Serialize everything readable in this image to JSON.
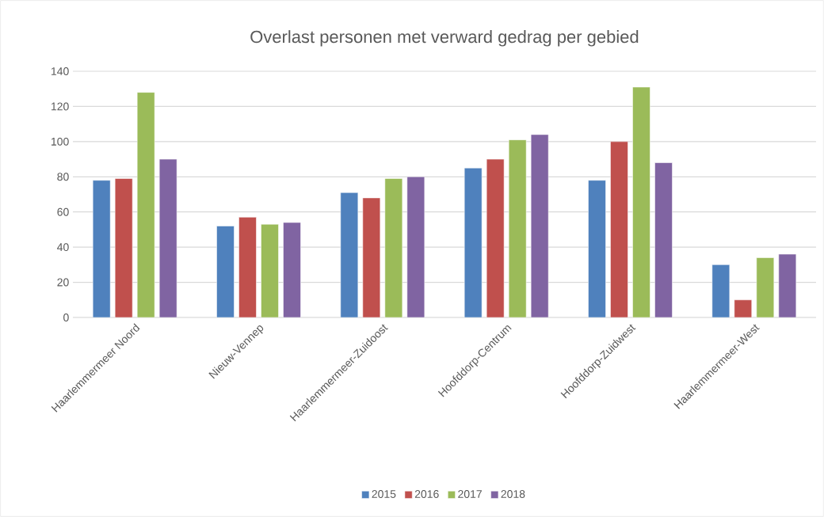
{
  "chart_data": {
    "type": "bar",
    "title": "Overlast personen met verward gedrag per gebied",
    "categories": [
      "Haarlemmermeer Noord",
      "Nieuw-Vennep",
      "Haarlemmermeer-Zuidoost",
      "Hoofddorp-Centrum",
      "Hoofddorp-Zuidwest",
      "Haarlemmermeer-West"
    ],
    "series": [
      {
        "name": "2015",
        "color": "#4f81bd",
        "values": [
          78,
          52,
          71,
          85,
          78,
          30
        ]
      },
      {
        "name": "2016",
        "color": "#c0504d",
        "values": [
          79,
          57,
          68,
          90,
          100,
          10
        ]
      },
      {
        "name": "2017",
        "color": "#9bbb59",
        "values": [
          128,
          53,
          79,
          101,
          131,
          34
        ]
      },
      {
        "name": "2018",
        "color": "#8064a2",
        "values": [
          90,
          54,
          80,
          104,
          88,
          36
        ]
      }
    ],
    "ylim": [
      0,
      140
    ],
    "yticks": [
      0,
      20,
      40,
      60,
      80,
      100,
      120,
      140
    ],
    "grid": "y",
    "legend": "bottom"
  }
}
